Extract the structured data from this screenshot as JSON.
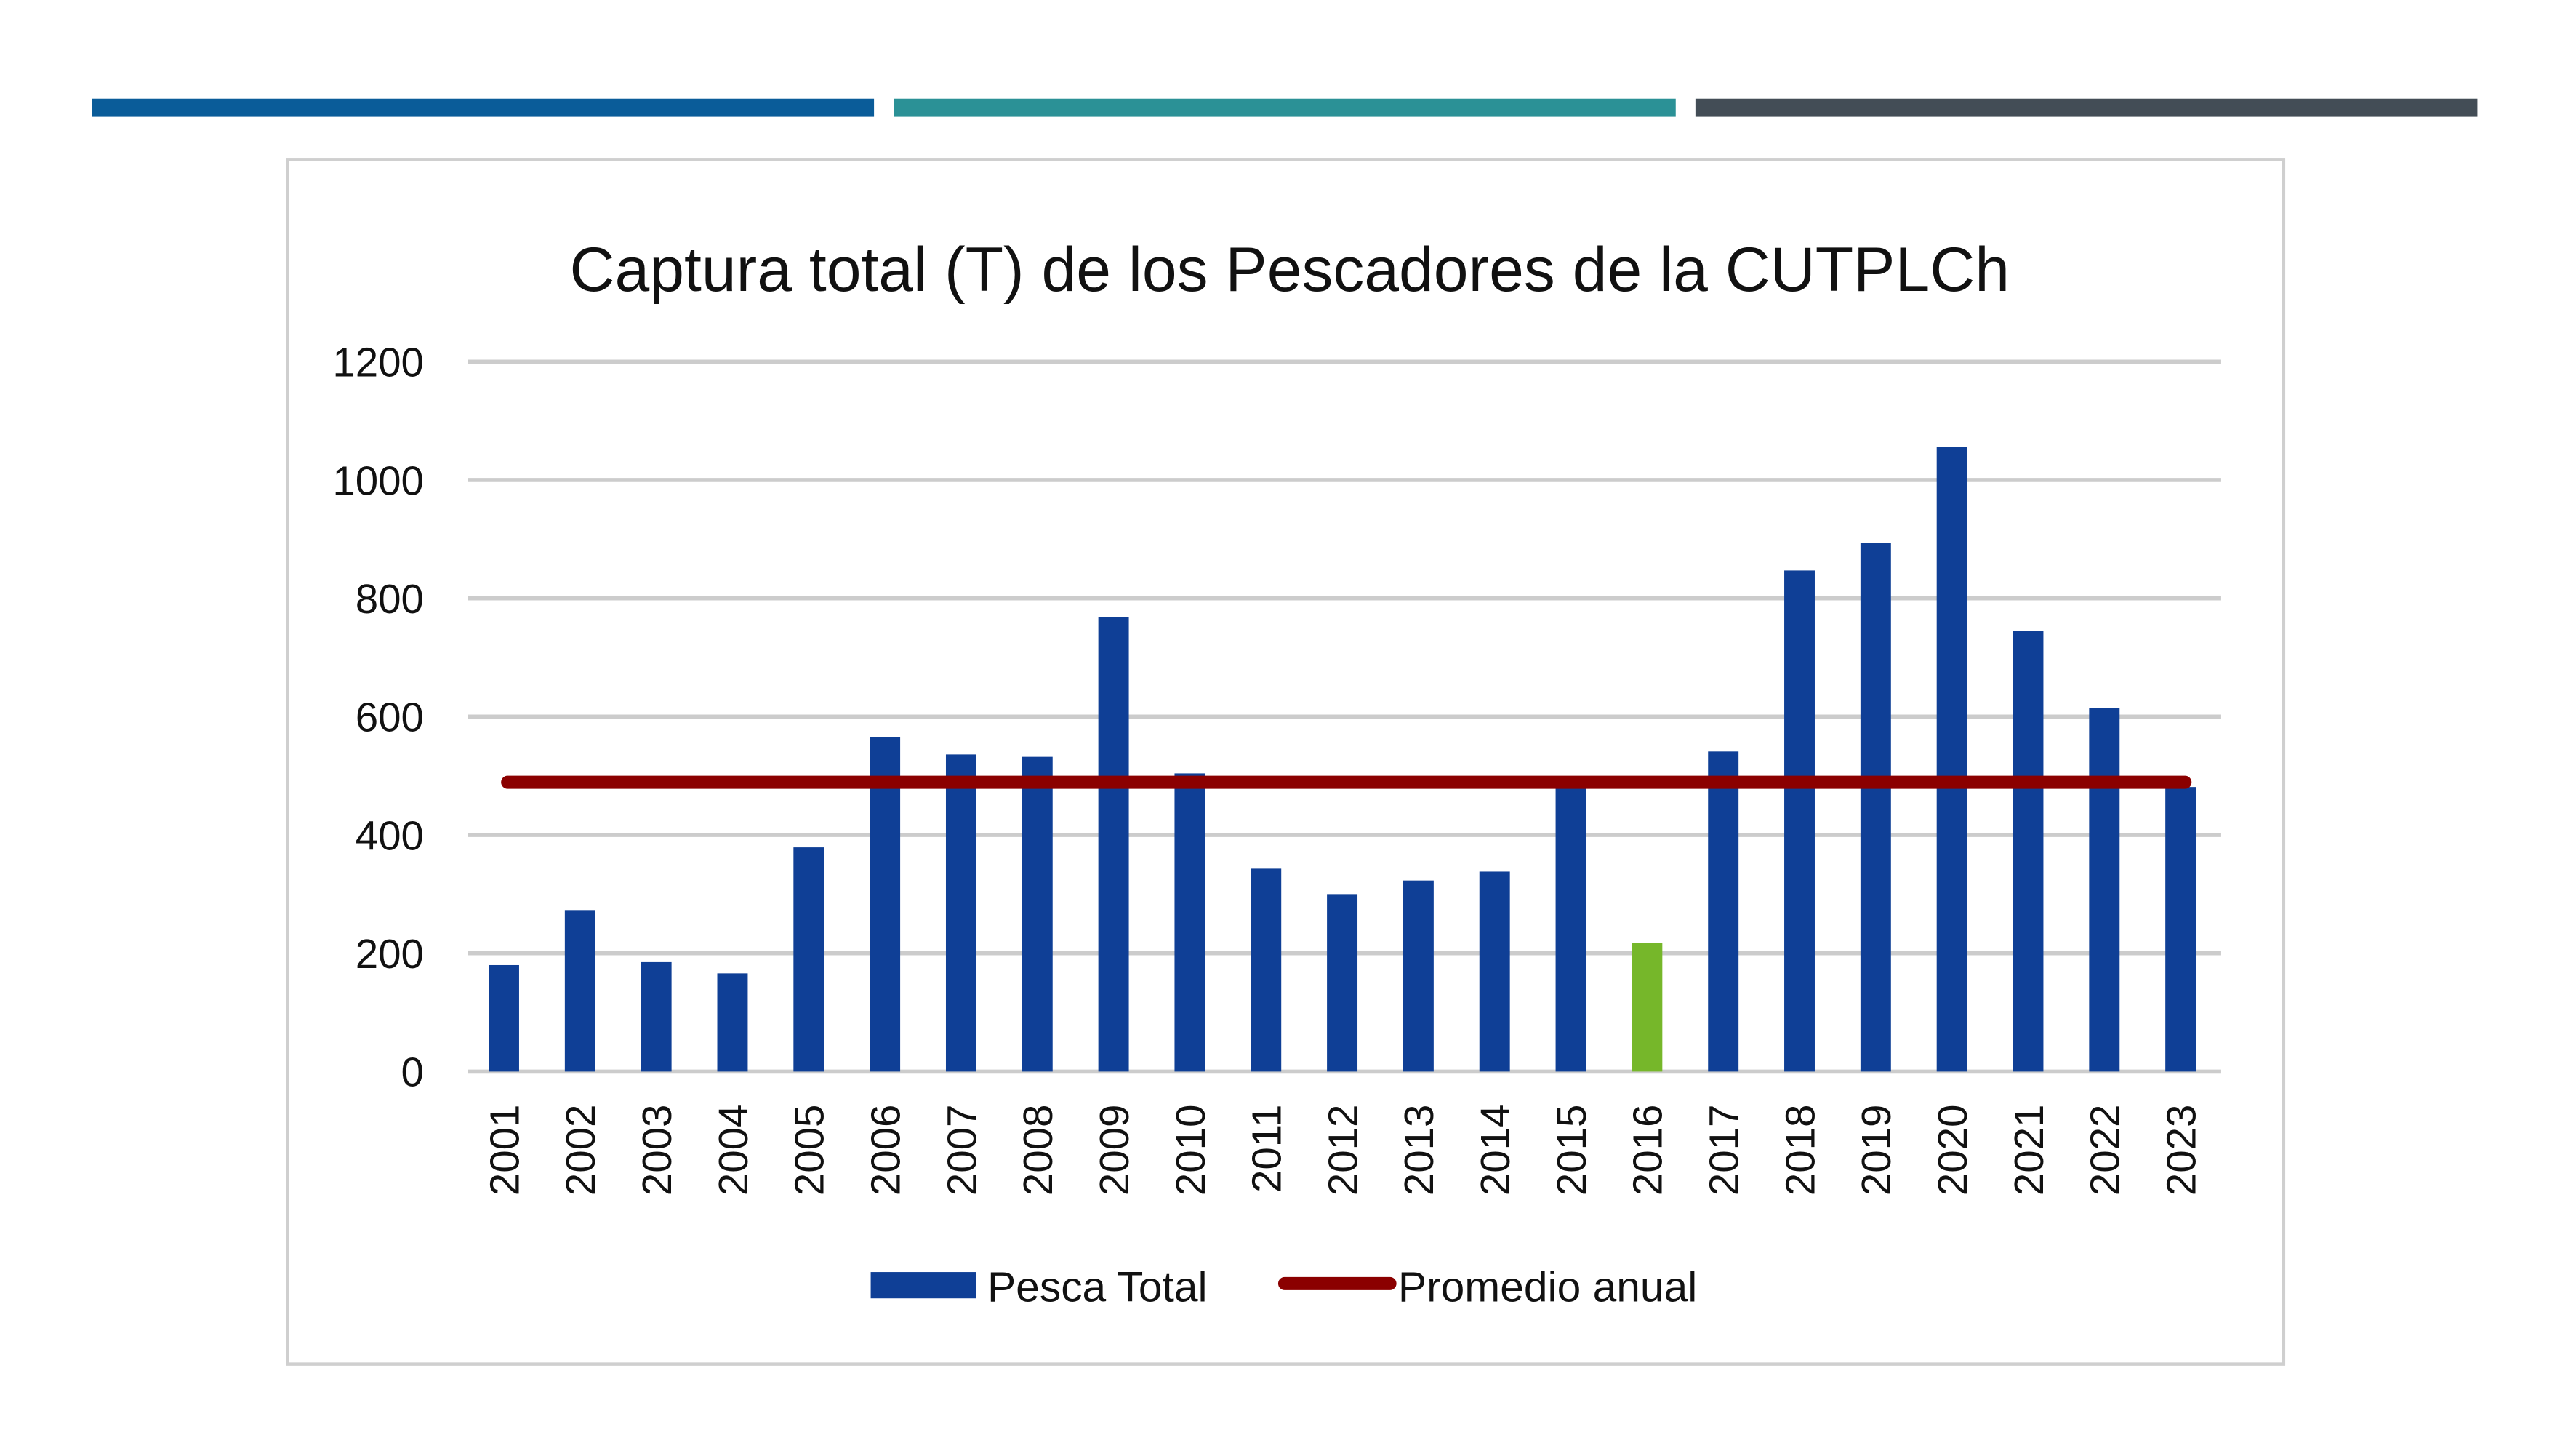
{
  "header_bars": {
    "colors": [
      "#0a5c99",
      "#2b9196",
      "#434d56"
    ]
  },
  "chart_data": {
    "type": "bar",
    "title": "Captura total (T) de los Pescadores de la CUTPLCh",
    "xlabel": "",
    "ylabel": "",
    "ylim": [
      0,
      1200
    ],
    "yticks": [
      0,
      200,
      400,
      600,
      800,
      1000,
      1200
    ],
    "grid": true,
    "legend_position": "bottom",
    "categories": [
      "2001",
      "2002",
      "2003",
      "2004",
      "2005",
      "2006",
      "2007",
      "2008",
      "2009",
      "2010",
      "2011",
      "2012",
      "2013",
      "2014",
      "2015",
      "2016",
      "2017",
      "2018",
      "2019",
      "2020",
      "2021",
      "2022",
      "2023"
    ],
    "series": [
      {
        "name": "Pesca Total",
        "type": "bar",
        "color": "#0f3f96",
        "highlight": {
          "category": "2016",
          "color": "#76b72a"
        },
        "values": [
          180,
          273,
          185,
          166,
          379,
          565,
          536,
          532,
          768,
          504,
          343,
          300,
          323,
          338,
          482,
          217,
          541,
          847,
          894,
          1056,
          745,
          615,
          481
        ]
      },
      {
        "name": "Promedio anual",
        "type": "line",
        "color": "#8b0000",
        "value": 489
      }
    ]
  }
}
